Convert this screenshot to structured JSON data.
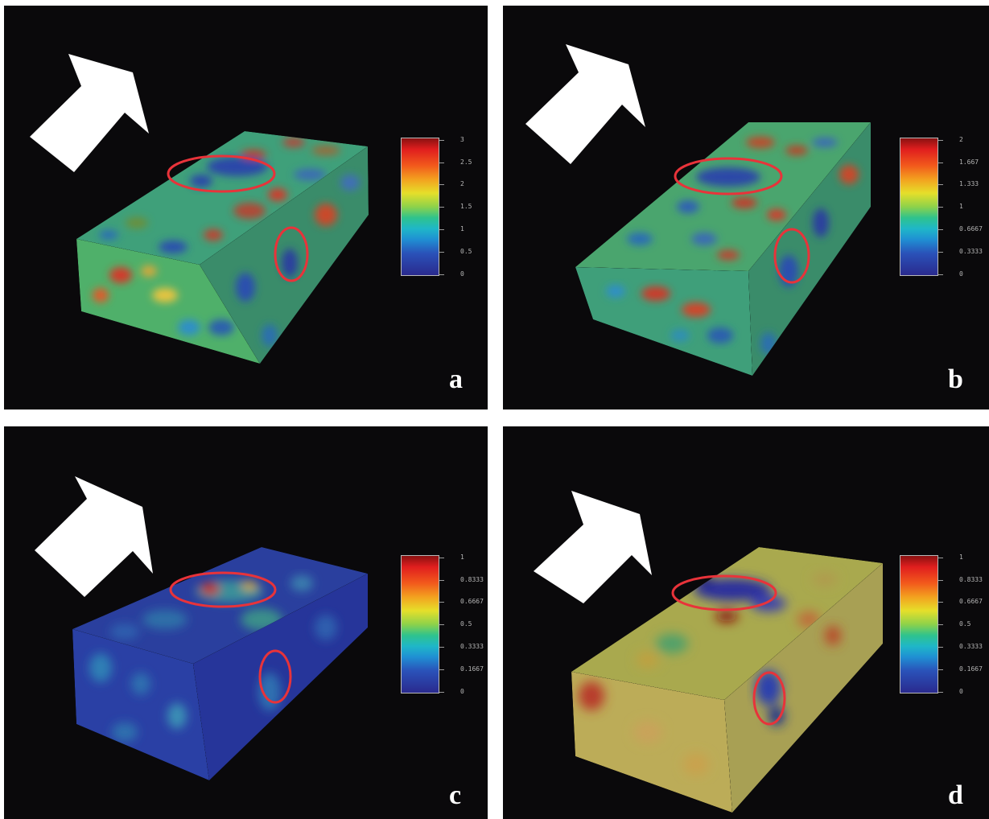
{
  "panels": [
    {
      "letter": "a",
      "colorbar_ticks": [
        "3",
        "2.5",
        "2",
        "1.5",
        "1",
        "0.5",
        "0"
      ]
    },
    {
      "letter": "b",
      "colorbar_ticks": [
        "2",
        "1.667",
        "1.333",
        "1",
        "0.6667",
        "0.3333",
        "0"
      ]
    },
    {
      "letter": "c",
      "colorbar_ticks": [
        "1",
        "0.8333",
        "0.6667",
        "0.5",
        "0.3333",
        "0.1667",
        "0"
      ]
    },
    {
      "letter": "d",
      "colorbar_ticks": [
        "1",
        "0.8333",
        "0.6667",
        "0.5",
        "0.3333",
        "0.1667",
        "0"
      ]
    }
  ],
  "colors": {
    "background": "#0a090b",
    "highlight_ellipse": "#e8333a",
    "arrow": "#ffffff"
  }
}
